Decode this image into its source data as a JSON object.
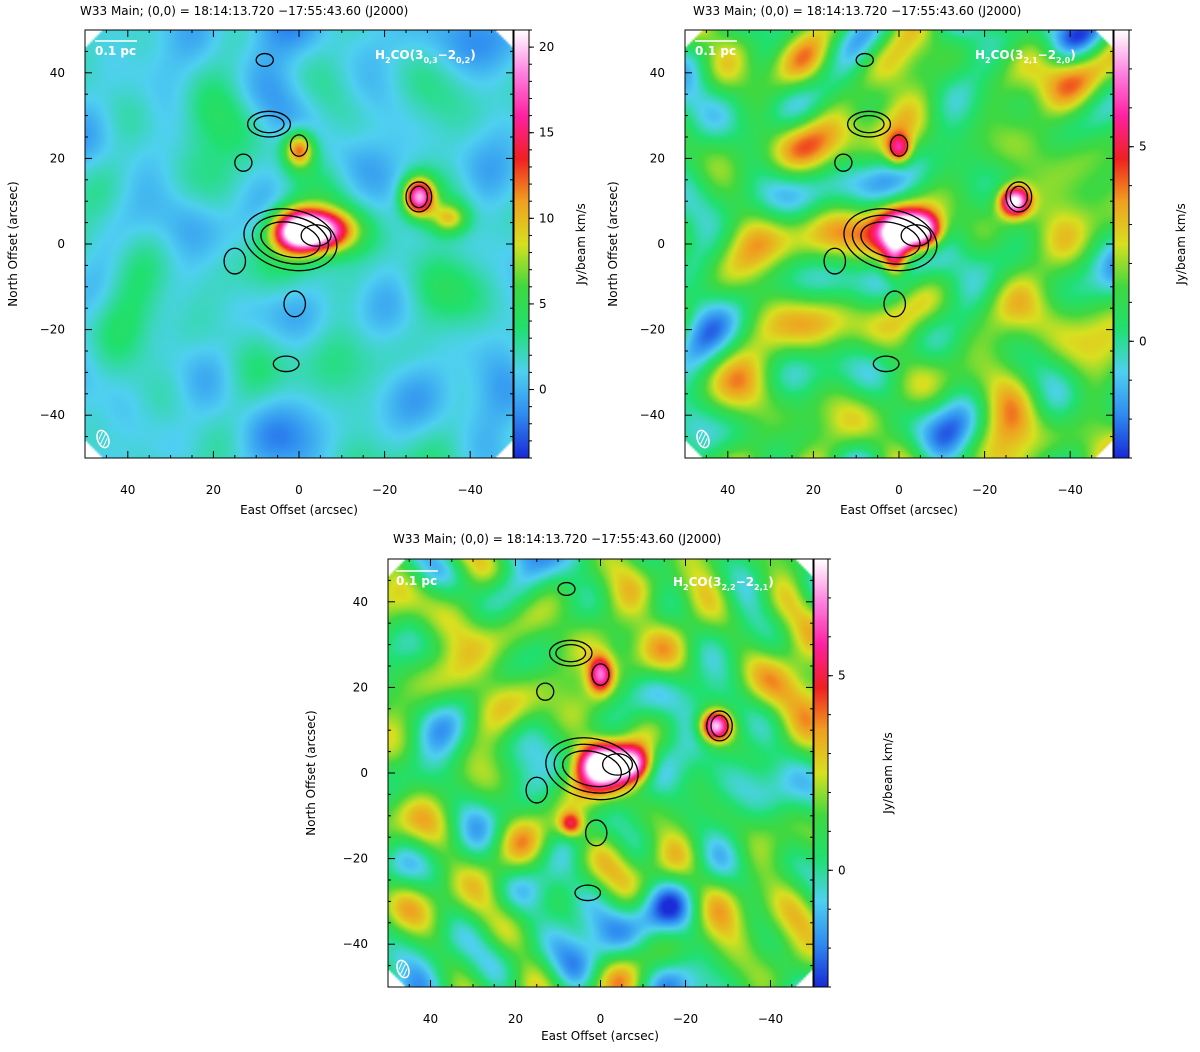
{
  "chart_data": [
    {
      "type": "heatmap",
      "header": "W33 Main; (0,0) = 18:14:13.720      −17:55:43.60 (J2000)",
      "line_base": "H",
      "line_sub1": "2",
      "line_mid": "CO(3",
      "line_sub2": "0,3",
      "line_dash": "−2",
      "line_sub3": "0,2",
      "line_end": ")",
      "scalebar_label": "0.1 pc",
      "xlabel": "East Offset (arcsec)",
      "ylabel": "North Offset (arcsec)",
      "colorbar_label": "Jy/beam km/s",
      "xlim": [
        50,
        -50
      ],
      "ylim": [
        -50,
        50
      ],
      "x_ticks": [
        "40",
        "20",
        "0",
        "−20",
        "−40"
      ],
      "x_tick_values": [
        40,
        20,
        0,
        -20,
        -40
      ],
      "y_ticks": [
        "−40",
        "−20",
        "0",
        "20",
        "40"
      ],
      "y_tick_values": [
        -40,
        -20,
        0,
        20,
        40
      ],
      "colorbar_range": [
        -4,
        21
      ],
      "colorbar_ticks": [
        "0",
        "5",
        "10",
        "15",
        "20"
      ],
      "colorbar_tick_values": [
        0,
        5,
        10,
        15,
        20
      ],
      "colormap": [
        "#1a2bd8",
        "#2f8cf0",
        "#4fd0f0",
        "#20e070",
        "#40d840",
        "#d8e020",
        "#f0a020",
        "#f02020",
        "#ff20a0",
        "#ff80e0",
        "#ffffff"
      ],
      "background_level": 0.22,
      "noise_amplitude": 0.06,
      "emission_peaks": [
        {
          "x": -5,
          "y": 3,
          "peak": 19,
          "sx": 5.5,
          "sy": 3.5
        },
        {
          "x": 1,
          "y": 3,
          "peak": 15,
          "sx": 4,
          "sy": 3.5
        },
        {
          "x": -28,
          "y": 11,
          "peak": 17,
          "sx": 2.5,
          "sy": 3
        },
        {
          "x": 0,
          "y": 22,
          "peak": 11,
          "sx": 2.5,
          "sy": 3
        },
        {
          "x": -35,
          "y": 6,
          "peak": 7,
          "sx": 3,
          "sy": 2.5
        }
      ],
      "contours": [
        {
          "x": 2,
          "y": 1,
          "rx": 11,
          "ry": 7,
          "angle": 12
        },
        {
          "x": 2,
          "y": 1,
          "rx": 9,
          "ry": 5.5,
          "angle": 12
        },
        {
          "x": 2,
          "y": 1,
          "rx": 7,
          "ry": 4,
          "angle": 12
        },
        {
          "x": -4,
          "y": 2,
          "rx": 3.5,
          "ry": 2.5,
          "angle": 0
        },
        {
          "x": 7,
          "y": 28,
          "rx": 5,
          "ry": 3,
          "angle": 0
        },
        {
          "x": 7,
          "y": 28,
          "rx": 3.5,
          "ry": 2,
          "angle": 0
        },
        {
          "x": 0,
          "y": 23,
          "rx": 2,
          "ry": 2.5,
          "angle": 0
        },
        {
          "x": -28,
          "y": 11,
          "rx": 3,
          "ry": 3.5,
          "angle": 0
        },
        {
          "x": -28,
          "y": 11,
          "rx": 2,
          "ry": 2.5,
          "angle": 0
        },
        {
          "x": 15,
          "y": -4,
          "rx": 2.5,
          "ry": 3,
          "angle": 0
        },
        {
          "x": 13,
          "y": 19,
          "rx": 2,
          "ry": 2,
          "angle": 0
        },
        {
          "x": 1,
          "y": -14,
          "rx": 2.5,
          "ry": 3,
          "angle": 0
        },
        {
          "x": 3,
          "y": -28,
          "rx": 3,
          "ry": 1.8,
          "angle": 0
        },
        {
          "x": 8,
          "y": 43,
          "rx": 2,
          "ry": 1.5,
          "angle": 0
        }
      ]
    },
    {
      "type": "heatmap",
      "header": "W33 Main; (0,0) = 18:14:13.720      −17:55:43.60 (J2000)",
      "line_base": "H",
      "line_sub1": "2",
      "line_mid": "CO(3",
      "line_sub2": "2,1",
      "line_dash": "−2",
      "line_sub3": "2,0",
      "line_end": ")",
      "scalebar_label": "0.1 pc",
      "xlabel": "East Offset (arcsec)",
      "ylabel": "North Offset (arcsec)",
      "colorbar_label": "Jy/beam km/s",
      "xlim": [
        50,
        -50
      ],
      "ylim": [
        -50,
        50
      ],
      "x_ticks": [
        "40",
        "20",
        "0",
        "−20",
        "−40"
      ],
      "x_tick_values": [
        40,
        20,
        0,
        -20,
        -40
      ],
      "y_ticks": [
        "−40",
        "−20",
        "0",
        "20",
        "40"
      ],
      "y_tick_values": [
        -40,
        -20,
        0,
        20,
        40
      ],
      "colorbar_range": [
        -3,
        8
      ],
      "colorbar_ticks": [
        "0",
        "5"
      ],
      "colorbar_tick_values": [
        0,
        5
      ],
      "colormap": [
        "#1a2bd8",
        "#2f8cf0",
        "#4fd0f0",
        "#20e070",
        "#40d840",
        "#d8e020",
        "#f0a020",
        "#f02020",
        "#ff20a0",
        "#ff80e0",
        "#ffffff"
      ],
      "background_level": 0.38,
      "noise_amplitude": 0.16,
      "emission_peaks": [
        {
          "x": 0,
          "y": 3,
          "peak": 7,
          "sx": 3.5,
          "sy": 3.5
        },
        {
          "x": -6,
          "y": 3,
          "peak": 6.5,
          "sx": 3,
          "sy": 3
        },
        {
          "x": -27,
          "y": 10,
          "peak": 7.5,
          "sx": 2.5,
          "sy": 2.5
        },
        {
          "x": 0,
          "y": 22,
          "peak": 4.5,
          "sx": 2,
          "sy": 2.5
        },
        {
          "x": 1,
          "y": -4,
          "peak": 4,
          "sx": 2,
          "sy": 3
        }
      ],
      "contours": [
        {
          "x": 2,
          "y": 1,
          "rx": 11,
          "ry": 7,
          "angle": 12
        },
        {
          "x": 2,
          "y": 1,
          "rx": 9,
          "ry": 5.5,
          "angle": 12
        },
        {
          "x": 2,
          "y": 1,
          "rx": 7,
          "ry": 4,
          "angle": 12
        },
        {
          "x": -4,
          "y": 2,
          "rx": 3.5,
          "ry": 2.5,
          "angle": 0
        },
        {
          "x": 7,
          "y": 28,
          "rx": 5,
          "ry": 3,
          "angle": 0
        },
        {
          "x": 7,
          "y": 28,
          "rx": 3.5,
          "ry": 2,
          "angle": 0
        },
        {
          "x": 0,
          "y": 23,
          "rx": 2,
          "ry": 2.5,
          "angle": 0
        },
        {
          "x": -28,
          "y": 11,
          "rx": 3,
          "ry": 3.5,
          "angle": 0
        },
        {
          "x": -28,
          "y": 11,
          "rx": 2,
          "ry": 2.5,
          "angle": 0
        },
        {
          "x": 15,
          "y": -4,
          "rx": 2.5,
          "ry": 3,
          "angle": 0
        },
        {
          "x": 13,
          "y": 19,
          "rx": 2,
          "ry": 2,
          "angle": 0
        },
        {
          "x": 1,
          "y": -14,
          "rx": 2.5,
          "ry": 3,
          "angle": 0
        },
        {
          "x": 3,
          "y": -28,
          "rx": 3,
          "ry": 1.8,
          "angle": 0
        },
        {
          "x": 8,
          "y": 43,
          "rx": 2,
          "ry": 1.5,
          "angle": 0
        }
      ]
    },
    {
      "type": "heatmap",
      "header": "W33 Main; (0,0) = 18:14:13.720      −17:55:43.60 (J2000)",
      "line_base": "H",
      "line_sub1": "2",
      "line_mid": "CO(3",
      "line_sub2": "2,2",
      "line_dash": "−2",
      "line_sub3": "2,1",
      "line_end": ")",
      "scalebar_label": "0.1 pc",
      "xlabel": "East Offset (arcsec)",
      "ylabel": "North Offset (arcsec)",
      "colorbar_label": "Jy/beam km/s",
      "xlim": [
        50,
        -50
      ],
      "ylim": [
        -50,
        50
      ],
      "x_ticks": [
        "40",
        "20",
        "0",
        "−20",
        "−40"
      ],
      "x_tick_values": [
        40,
        20,
        0,
        -20,
        -40
      ],
      "y_ticks": [
        "−40",
        "−20",
        "0",
        "20",
        "40"
      ],
      "y_tick_values": [
        -40,
        -20,
        0,
        20,
        40
      ],
      "colorbar_range": [
        -3,
        8
      ],
      "colorbar_ticks": [
        "0",
        "5"
      ],
      "colorbar_tick_values": [
        0,
        5
      ],
      "colormap": [
        "#1a2bd8",
        "#2f8cf0",
        "#4fd0f0",
        "#20e070",
        "#40d840",
        "#d8e020",
        "#f0a020",
        "#f02020",
        "#ff20a0",
        "#ff80e0",
        "#ffffff"
      ],
      "background_level": 0.36,
      "noise_amplitude": 0.16,
      "emission_peaks": [
        {
          "x": 0,
          "y": 2,
          "peak": 7.5,
          "sx": 4,
          "sy": 3.5
        },
        {
          "x": -8,
          "y": 2,
          "peak": 6,
          "sx": 3,
          "sy": 3
        },
        {
          "x": -27,
          "y": 11,
          "peak": 7,
          "sx": 2.5,
          "sy": 2.5
        },
        {
          "x": 0,
          "y": 23,
          "peak": 5,
          "sx": 2,
          "sy": 3
        },
        {
          "x": 7,
          "y": -12,
          "peak": 4,
          "sx": 2,
          "sy": 2
        }
      ],
      "contours": [
        {
          "x": 2,
          "y": 1,
          "rx": 11,
          "ry": 7,
          "angle": 12
        },
        {
          "x": 2,
          "y": 1,
          "rx": 9,
          "ry": 5.5,
          "angle": 12
        },
        {
          "x": 2,
          "y": 1,
          "rx": 7,
          "ry": 4,
          "angle": 12
        },
        {
          "x": -4,
          "y": 2,
          "rx": 3.5,
          "ry": 2.5,
          "angle": 0
        },
        {
          "x": 7,
          "y": 28,
          "rx": 5,
          "ry": 3,
          "angle": 0
        },
        {
          "x": 7,
          "y": 28,
          "rx": 3.5,
          "ry": 2,
          "angle": 0
        },
        {
          "x": 0,
          "y": 23,
          "rx": 2,
          "ry": 2.5,
          "angle": 0
        },
        {
          "x": -28,
          "y": 11,
          "rx": 3,
          "ry": 3.5,
          "angle": 0
        },
        {
          "x": -28,
          "y": 11,
          "rx": 2,
          "ry": 2.5,
          "angle": 0
        },
        {
          "x": 15,
          "y": -4,
          "rx": 2.5,
          "ry": 3,
          "angle": 0
        },
        {
          "x": 13,
          "y": 19,
          "rx": 2,
          "ry": 2,
          "angle": 0
        },
        {
          "x": 1,
          "y": -14,
          "rx": 2.5,
          "ry": 3,
          "angle": 0
        },
        {
          "x": 3,
          "y": -28,
          "rx": 3,
          "ry": 1.8,
          "angle": 0
        },
        {
          "x": 8,
          "y": 43,
          "rx": 2,
          "ry": 1.5,
          "angle": 0
        }
      ]
    }
  ]
}
